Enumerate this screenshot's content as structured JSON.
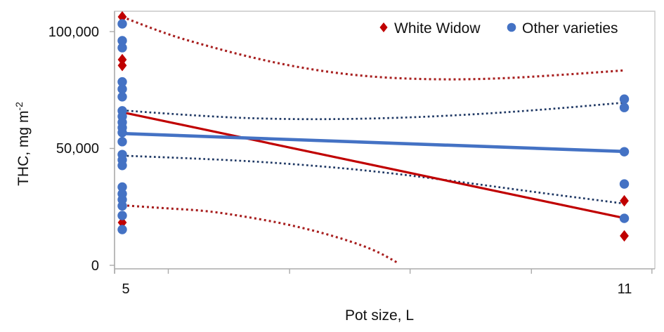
{
  "chart_data": {
    "type": "scatter",
    "title": "",
    "xlabel": "Pot size, L",
    "ylabel": "THC, mg m-2",
    "ylabel_base": "THC, mg m",
    "ylabel_exponent": "-2",
    "xlim": [
      4.9,
      11.37
    ],
    "ylim": [
      0,
      108600
    ],
    "grid": false,
    "legend_position": "top-inside",
    "colors": {
      "white_widow": "#C00000",
      "other_varieties": "#4472C4",
      "white_widow_ci": "#A82020",
      "other_varieties_ci": "#1F3864",
      "axis": "#ABABAB",
      "plot_border": "#C9C9C9",
      "text": "#111111"
    },
    "x_tick_labels": [
      {
        "value": 5,
        "label": "5"
      },
      {
        "value": 11,
        "label": "11"
      }
    ],
    "x_minor_ticks": [
      4.91,
      5.55,
      7.0,
      8.44,
      9.89,
      11.33
    ],
    "y_ticks": [
      {
        "value": 0,
        "label": "0"
      },
      {
        "value": 50000,
        "label": "50,000"
      },
      {
        "value": 100000,
        "label": "100,000"
      }
    ],
    "legend": [
      {
        "name": "White Widow",
        "marker": "diamond",
        "color": "#C00000"
      },
      {
        "name": "Other varieties",
        "marker": "circle",
        "color": "#4472C4"
      }
    ],
    "series": [
      {
        "name": "White Widow",
        "marker": "diamond",
        "color": "#C00000",
        "points": [
          [
            5,
            106300
          ],
          [
            5,
            88000
          ],
          [
            5,
            85500
          ],
          [
            5,
            30300
          ],
          [
            5,
            18300
          ],
          [
            11,
            27600
          ],
          [
            11,
            12600
          ]
        ]
      },
      {
        "name": "Other varieties",
        "marker": "circle",
        "color": "#4472C4",
        "points": [
          [
            5,
            103300
          ],
          [
            5,
            96100
          ],
          [
            5,
            93100
          ],
          [
            5,
            78500
          ],
          [
            5,
            75400
          ],
          [
            5,
            72100
          ],
          [
            5,
            66100
          ],
          [
            5,
            63700
          ],
          [
            5,
            61200
          ],
          [
            5,
            58900
          ],
          [
            5,
            56800
          ],
          [
            5,
            52900
          ],
          [
            5,
            47400
          ],
          [
            5,
            45100
          ],
          [
            5,
            42700
          ],
          [
            5,
            33500
          ],
          [
            5,
            30600
          ],
          [
            5,
            28100
          ],
          [
            5,
            25400
          ],
          [
            5,
            21300
          ],
          [
            5,
            15300
          ],
          [
            11,
            71100
          ],
          [
            11,
            67500
          ],
          [
            11,
            48600
          ],
          [
            11,
            34800
          ],
          [
            11,
            20100
          ]
        ]
      }
    ],
    "trend_lines": [
      {
        "name": "white-widow-trend",
        "series": "White Widow",
        "color": "#C00000",
        "style": "solid",
        "width": 3.2,
        "points": [
          [
            5,
            65500
          ],
          [
            11,
            20200
          ]
        ]
      },
      {
        "name": "other-varieties-trend",
        "series": "Other varieties",
        "color": "#4472C4",
        "style": "solid",
        "width": 4.6,
        "points": [
          [
            5,
            56400
          ],
          [
            11,
            48700
          ]
        ]
      }
    ],
    "ci_curves": [
      {
        "name": "white-widow-upper-ci",
        "series": "White Widow",
        "color": "#A82020",
        "style": "dotted",
        "width": 3.1,
        "dash": "3 4",
        "points": [
          [
            5,
            106300
          ],
          [
            5.5,
            99200
          ],
          [
            6,
            94000
          ],
          [
            6.5,
            89300
          ],
          [
            7,
            85400
          ],
          [
            7.5,
            82500
          ],
          [
            8,
            80600
          ],
          [
            8.5,
            79700
          ],
          [
            9,
            79500
          ],
          [
            9.5,
            79900
          ],
          [
            10,
            80900
          ],
          [
            10.5,
            82100
          ],
          [
            11,
            83400
          ]
        ]
      },
      {
        "name": "white-widow-lower-ci",
        "series": "White Widow",
        "color": "#A82020",
        "style": "dotted",
        "width": 3.1,
        "dash": "3 4",
        "points": [
          [
            5,
            25700
          ],
          [
            5.5,
            24400
          ],
          [
            6,
            23400
          ],
          [
            6.5,
            20700
          ],
          [
            7,
            17400
          ],
          [
            7.5,
            12900
          ],
          [
            8,
            6900
          ],
          [
            8.3,
            900
          ]
        ]
      },
      {
        "name": "other-varieties-upper-ci",
        "series": "Other varieties",
        "color": "#1F3864",
        "style": "dotted",
        "width": 2.7,
        "dash": "2.7 3.7",
        "points": [
          [
            5,
            66300
          ],
          [
            6,
            63600
          ],
          [
            7,
            62400
          ],
          [
            8,
            62700
          ],
          [
            9,
            64100
          ],
          [
            10,
            66500
          ],
          [
            11,
            69600
          ]
        ]
      },
      {
        "name": "other-varieties-lower-ci",
        "series": "Other varieties",
        "color": "#1F3864",
        "style": "dotted",
        "width": 2.7,
        "dash": "2.7 3.7",
        "points": [
          [
            5,
            46900
          ],
          [
            6,
            45600
          ],
          [
            7,
            43500
          ],
          [
            8,
            40400
          ],
          [
            9,
            35900
          ],
          [
            10,
            31000
          ],
          [
            11,
            26400
          ]
        ]
      }
    ]
  }
}
